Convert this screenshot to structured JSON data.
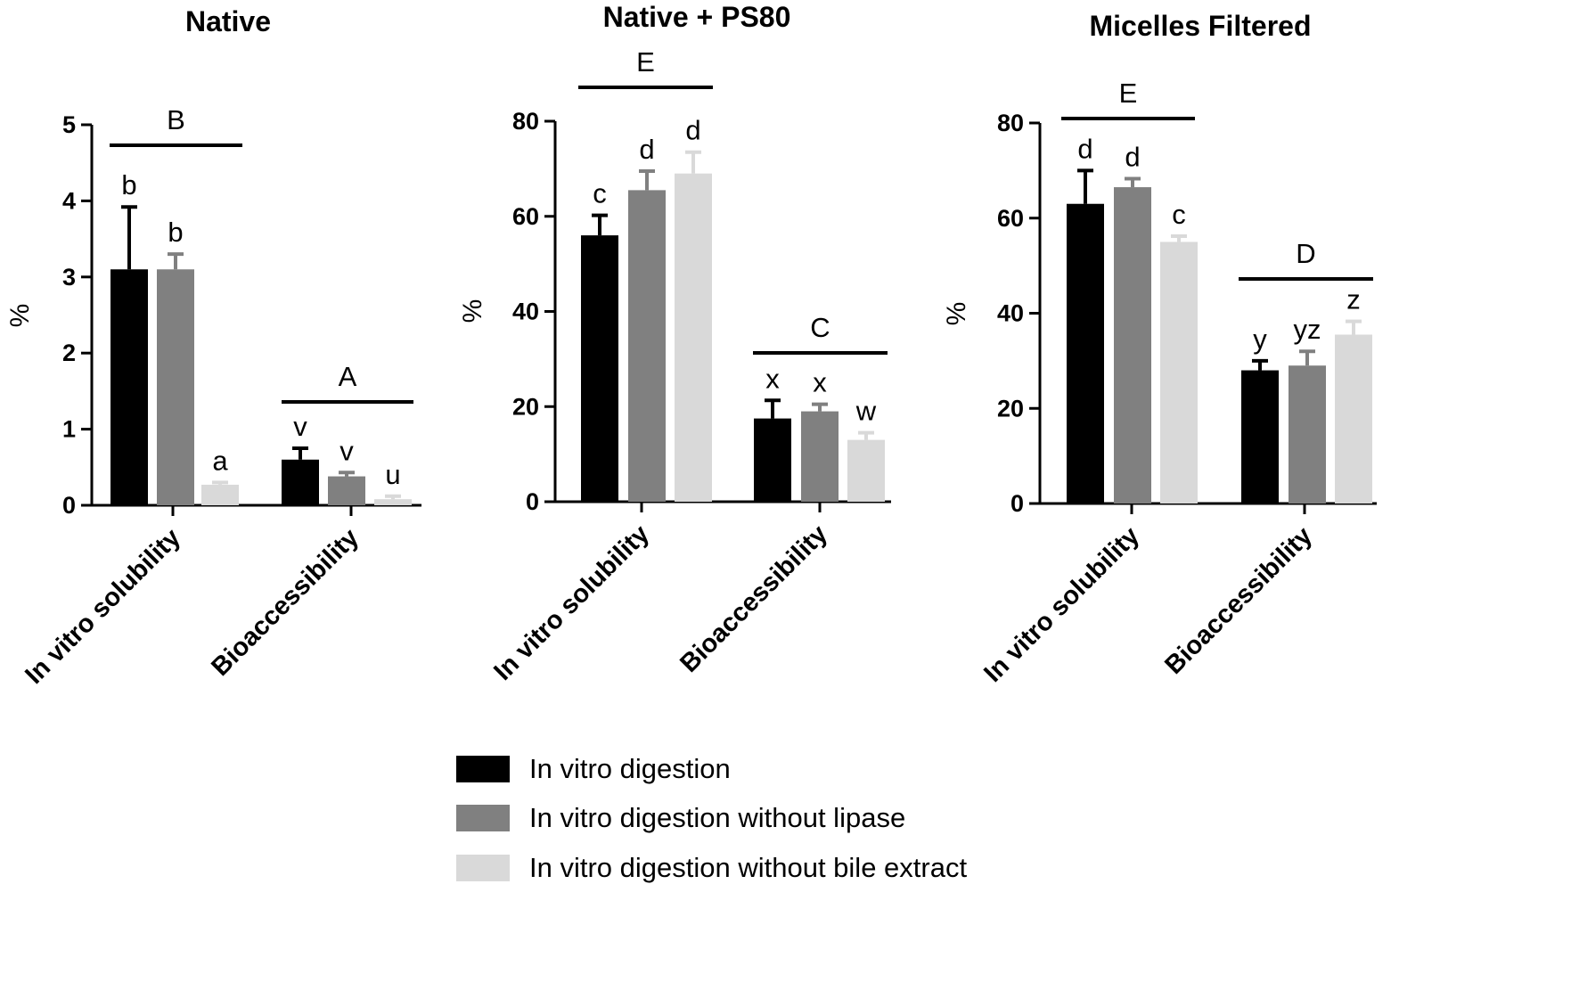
{
  "chart_data": [
    {
      "type": "bar",
      "title": "Native",
      "ylabel": "%",
      "ylim": [
        0,
        5
      ],
      "yticks": [
        0,
        1,
        2,
        3,
        4,
        5
      ],
      "categories": [
        "In vitro solubility",
        "Bioaccessibility"
      ],
      "series": [
        {
          "name": "In vitro digestion",
          "values": [
            3.1,
            0.6
          ],
          "errors": [
            0.82,
            0.15
          ],
          "letters": [
            "b",
            "v"
          ]
        },
        {
          "name": "In vitro digestion without lipase",
          "values": [
            3.1,
            0.38
          ],
          "errors": [
            0.2,
            0.05
          ],
          "letters": [
            "b",
            "v"
          ]
        },
        {
          "name": "In vitro digestion without bile extract",
          "values": [
            0.27,
            0.08
          ],
          "errors": [
            0.03,
            0.04
          ],
          "letters": [
            "a",
            "u"
          ]
        }
      ],
      "group_letters": [
        "B",
        "A"
      ]
    },
    {
      "type": "bar",
      "title": "Native + PS80",
      "ylabel": "%",
      "ylim": [
        0,
        80
      ],
      "yticks": [
        0,
        20,
        40,
        60,
        80
      ],
      "categories": [
        "In vitro solubility",
        "Bioaccessibility"
      ],
      "series": [
        {
          "name": "In vitro digestion",
          "values": [
            56,
            17.5
          ],
          "errors": [
            4.2,
            3.8
          ],
          "letters": [
            "c",
            "x"
          ]
        },
        {
          "name": "In vitro digestion without lipase",
          "values": [
            65.5,
            19
          ],
          "errors": [
            4,
            1.5
          ],
          "letters": [
            "d",
            "x"
          ]
        },
        {
          "name": "In vitro digestion without bile extract",
          "values": [
            69,
            13
          ],
          "errors": [
            4.5,
            1.5
          ],
          "letters": [
            "d",
            "w"
          ]
        }
      ],
      "group_letters": [
        "E",
        "C"
      ]
    },
    {
      "type": "bar",
      "title": "Micelles Filtered",
      "ylabel": "%",
      "ylim": [
        0,
        80
      ],
      "yticks": [
        0,
        20,
        40,
        60,
        80
      ],
      "categories": [
        "In vitro solubility",
        "Bioaccessibility"
      ],
      "series": [
        {
          "name": "In vitro digestion",
          "values": [
            63,
            28
          ],
          "errors": [
            7,
            2
          ],
          "letters": [
            "d",
            "y"
          ]
        },
        {
          "name": "In vitro digestion without lipase",
          "values": [
            66.5,
            29
          ],
          "errors": [
            1.8,
            3
          ],
          "letters": [
            "d",
            "yz"
          ]
        },
        {
          "name": "In vitro digestion without bile extract",
          "values": [
            55,
            35.5
          ],
          "errors": [
            1.2,
            2.8
          ],
          "letters": [
            "c",
            "z"
          ]
        }
      ],
      "group_letters": [
        "E",
        "D"
      ]
    }
  ],
  "legend": [
    {
      "label": "In vitro digestion",
      "color": "#000000"
    },
    {
      "label": "In vitro digestion without lipase",
      "color": "#808080"
    },
    {
      "label": "In vitro digestion without bile extract",
      "color": "#d9d9d9"
    }
  ],
  "colors": [
    "#000000",
    "#808080",
    "#d9d9d9"
  ]
}
